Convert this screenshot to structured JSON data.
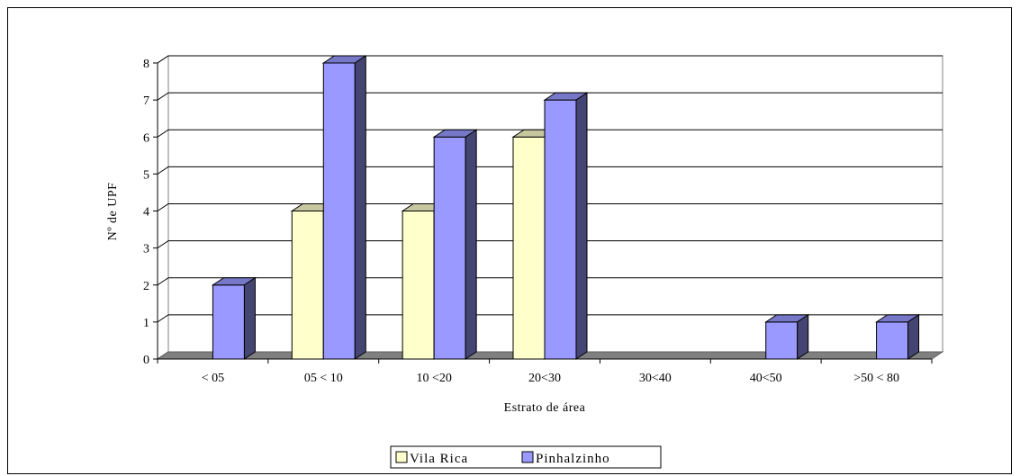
{
  "chart_data": {
    "type": "bar",
    "categories": [
      "< 05",
      "05 < 10",
      "10 <20",
      "20<30",
      "30<40",
      "40<50",
      ">50 < 80"
    ],
    "series": [
      {
        "name": "Vila Rica",
        "color": "#ffffcc",
        "values": [
          0,
          4,
          4,
          6,
          0,
          0,
          0
        ]
      },
      {
        "name": "Pinhalzinho",
        "color": "#9999ff",
        "values": [
          2,
          8,
          6,
          7,
          0,
          1,
          1
        ]
      }
    ],
    "xlabel": "Estrato de área",
    "ylabel": "Nº de UPF",
    "ylim": [
      0,
      8
    ],
    "yticks": [
      0,
      1,
      2,
      3,
      4,
      5,
      6,
      7,
      8
    ],
    "grid": true,
    "legend_position": "bottom",
    "style": "3d-bar"
  }
}
